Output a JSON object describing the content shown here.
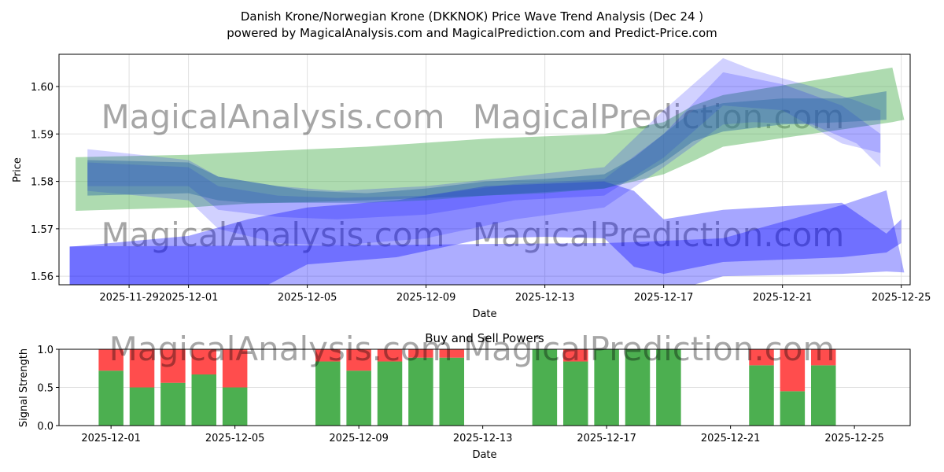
{
  "chart_data": [
    {
      "type": "area",
      "title": "Danish Krone/Norwegian Krone (DKKNOK) Price Wave Trend Analysis (Dec 24 )",
      "subtitle": "powered by MagicalAnalysis.com and MagicalPrediction.com and Predict-Price.com",
      "xlabel": "Date",
      "ylabel": "Price",
      "x_unit": "days since 2025-11-29",
      "xlim": [
        -2.36,
        26.3
      ],
      "ylim": [
        1.5582,
        1.6068
      ],
      "x_ticks": [
        {
          "x": 0,
          "label": "2025-11-29"
        },
        {
          "x": 2,
          "label": "2025-12-01"
        },
        {
          "x": 6,
          "label": "2025-12-05"
        },
        {
          "x": 10,
          "label": "2025-12-09"
        },
        {
          "x": 14,
          "label": "2025-12-13"
        },
        {
          "x": 18,
          "label": "2025-12-17"
        },
        {
          "x": 22,
          "label": "2025-12-21"
        },
        {
          "x": 26,
          "label": "2025-12-25"
        }
      ],
      "y_ticks": [
        {
          "y": 1.56,
          "label": "1.56"
        },
        {
          "y": 1.57,
          "label": "1.57"
        },
        {
          "y": 1.58,
          "label": "1.58"
        },
        {
          "y": 1.59,
          "label": "1.59"
        },
        {
          "y": 1.6,
          "label": "1.60"
        }
      ],
      "grid": true,
      "watermarks": [
        "MagicalAnalysis.com",
        "MagicalPrediction.com"
      ],
      "bands": [
        {
          "name": "green-trend-band",
          "color": "#4caf50",
          "opacity": 0.45,
          "x": [
            -1.8,
            2,
            4,
            8,
            12,
            16,
            18,
            19,
            20,
            25.7,
            26.1
          ],
          "upper": [
            1.5851,
            1.5856,
            1.5862,
            1.5873,
            1.589,
            1.59,
            1.5925,
            1.596,
            1.5982,
            1.604,
            1.593
          ],
          "lower": [
            1.5738,
            1.5745,
            1.5753,
            1.576,
            1.577,
            1.5785,
            1.5815,
            1.5843,
            1.5873,
            1.5925,
            1.593
          ]
        },
        {
          "name": "blue-wave-low-wide",
          "color": "#0000ff",
          "opacity": 0.32,
          "x": [
            -2,
            2,
            6,
            9,
            12,
            16,
            17,
            20,
            24,
            25.5,
            26.1
          ],
          "upper": [
            1.5663,
            1.5664,
            1.5665,
            1.5666,
            1.5668,
            1.567,
            1.5672,
            1.568,
            1.575,
            1.5781,
            1.5608
          ],
          "lower": [
            1.553,
            1.553,
            1.553,
            1.553,
            1.5535,
            1.554,
            1.5545,
            1.56,
            1.5605,
            1.561,
            1.5608
          ]
        },
        {
          "name": "blue-wave-rising",
          "color": "#0000ff",
          "opacity": 0.35,
          "x": [
            -2,
            2,
            4,
            6,
            9,
            12,
            14,
            16,
            17,
            18,
            20,
            24,
            25.5,
            26
          ],
          "upper": [
            1.5662,
            1.5685,
            1.572,
            1.5745,
            1.576,
            1.579,
            1.5795,
            1.58,
            1.578,
            1.572,
            1.574,
            1.5755,
            1.569,
            1.572
          ],
          "lower": [
            1.55,
            1.551,
            1.556,
            1.5625,
            1.564,
            1.568,
            1.5683,
            1.568,
            1.562,
            1.5605,
            1.563,
            1.564,
            1.565,
            1.567
          ]
        },
        {
          "name": "blue-wave-main",
          "color": "#0000ff",
          "opacity": 0.18,
          "x": [
            -1.4,
            2,
            3,
            5,
            7,
            10,
            13,
            16,
            18,
            20,
            21,
            23,
            24.5,
            25.3
          ],
          "upper": [
            1.5868,
            1.5845,
            1.581,
            1.579,
            1.578,
            1.579,
            1.581,
            1.583,
            1.595,
            1.606,
            1.6035,
            1.6,
            1.597,
            1.595
          ],
          "lower": [
            1.578,
            1.576,
            1.57,
            1.567,
            1.5665,
            1.568,
            1.572,
            1.5745,
            1.583,
            1.592,
            1.5925,
            1.592,
            1.588,
            1.583
          ]
        },
        {
          "name": "blue-wave-inner",
          "color": "#0000ff",
          "opacity": 0.18,
          "x": [
            -1.4,
            2,
            3,
            5,
            7,
            10,
            13,
            16,
            18,
            20,
            22,
            24,
            25.3
          ],
          "upper": [
            1.584,
            1.583,
            1.579,
            1.577,
            1.5765,
            1.577,
            1.5795,
            1.5805,
            1.59,
            1.603,
            1.6005,
            1.596,
            1.59
          ],
          "lower": [
            1.579,
            1.579,
            1.574,
            1.5725,
            1.572,
            1.573,
            1.576,
            1.577,
            1.585,
            1.596,
            1.595,
            1.588,
            1.586
          ]
        },
        {
          "name": "teal-wave-core",
          "color": "#2e6da4",
          "opacity": 0.45,
          "x": [
            -1.4,
            2,
            3,
            4,
            6,
            8,
            10,
            12,
            14,
            16,
            17,
            18,
            19,
            20,
            22,
            24,
            25.5
          ],
          "upper": [
            1.5845,
            1.584,
            1.581,
            1.58,
            1.578,
            1.5775,
            1.5785,
            1.58,
            1.5805,
            1.5815,
            1.585,
            1.59,
            1.595,
            1.5965,
            1.5975,
            1.5975,
            1.599
          ],
          "lower": [
            1.577,
            1.5775,
            1.576,
            1.5755,
            1.5755,
            1.5755,
            1.576,
            1.577,
            1.5775,
            1.5785,
            1.5805,
            1.584,
            1.5885,
            1.5905,
            1.592,
            1.5925,
            1.593
          ]
        }
      ]
    },
    {
      "type": "bar",
      "title": "Buy and Sell Powers",
      "xlabel": "Date",
      "ylabel": "Signal Strength",
      "ylim": [
        0,
        1
      ],
      "x_unit": "days since 2025-12-01",
      "xlim": [
        -1.68,
        25.8
      ],
      "x_ticks": [
        {
          "x": 0,
          "label": "2025-12-01"
        },
        {
          "x": 4,
          "label": "2025-12-05"
        },
        {
          "x": 8,
          "label": "2025-12-09"
        },
        {
          "x": 12,
          "label": "2025-12-13"
        },
        {
          "x": 16,
          "label": "2025-12-17"
        },
        {
          "x": 20,
          "label": "2025-12-21"
        },
        {
          "x": 24,
          "label": "2025-12-25"
        }
      ],
      "y_ticks": [
        {
          "y": 0,
          "label": "0.0"
        },
        {
          "y": 0.5,
          "label": "0.5"
        },
        {
          "y": 1,
          "label": "1.0"
        }
      ],
      "buy_color": "#4caf50",
      "sell_color": "#ff4d4d",
      "days": [
        0,
        1,
        2,
        3,
        4,
        7,
        8,
        9,
        10,
        11,
        14,
        15,
        16,
        17,
        18,
        21,
        22,
        23
      ],
      "buy": [
        0.72,
        0.5,
        0.56,
        0.67,
        0.5,
        0.84,
        0.72,
        0.84,
        0.89,
        0.89,
        1.0,
        0.84,
        1.0,
        1.0,
        1.0,
        0.79,
        0.45,
        0.79
      ]
    }
  ]
}
